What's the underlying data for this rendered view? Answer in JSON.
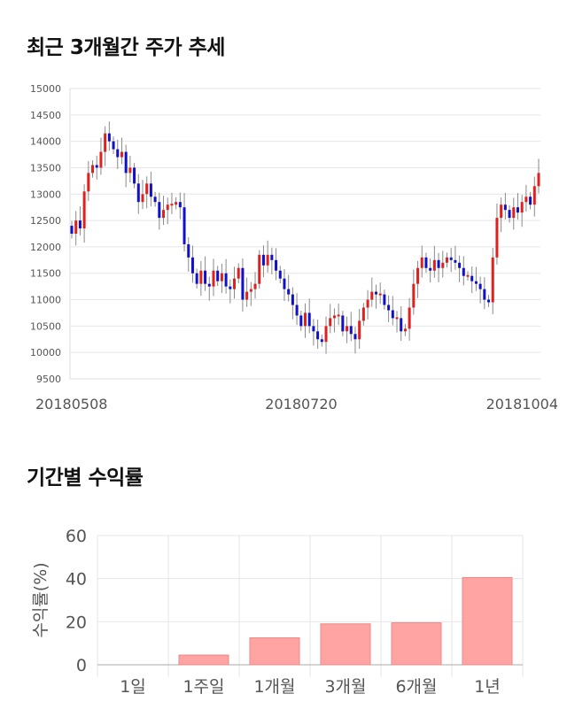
{
  "sections": {
    "price_title": "최근 3개월간 주가 추세",
    "return_title": "기간별 수익률"
  },
  "colors": {
    "up": "#e0201c",
    "down": "#1010c8",
    "bar_fill": "#ffa3a3",
    "bar_stroke": "#e88888",
    "grid": "#e6e6e6"
  },
  "chart_data": [
    {
      "type": "candlestick",
      "title": "최근 3개월간 주가 추세",
      "ylim": [
        9500,
        15000
      ],
      "yticks": [
        9500,
        10000,
        10500,
        11000,
        11500,
        12000,
        12500,
        13000,
        13500,
        14000,
        14500,
        15000
      ],
      "xtick_labels": [
        "20180508",
        "20180720",
        "20181004"
      ],
      "grid": true,
      "close": [
        12250,
        12500,
        12350,
        13050,
        13400,
        13550,
        13500,
        13800,
        14150,
        14000,
        13850,
        13700,
        13800,
        13400,
        13500,
        13200,
        12850,
        13000,
        13200,
        12950,
        12850,
        12550,
        12700,
        12800,
        12800,
        12850,
        12750,
        12050,
        11800,
        11500,
        11300,
        11550,
        11300,
        11250,
        11550,
        11350,
        11500,
        11250,
        11200,
        11400,
        11600,
        11000,
        11150,
        11200,
        11300,
        11850,
        11650,
        11850,
        11750,
        11550,
        11400,
        11200,
        11100,
        10900,
        10700,
        10500,
        10750,
        10500,
        10400,
        10250,
        10200,
        10500,
        10650,
        10700,
        10700,
        10400,
        10500,
        10350,
        10250,
        10600,
        10850,
        11000,
        11150,
        11100,
        11100,
        10900,
        10800,
        10650,
        10650,
        10400,
        10450,
        10850,
        11300,
        11600,
        11800,
        11600,
        11550,
        11750,
        11600,
        11700,
        11800,
        11750,
        11700,
        11600,
        11450,
        11450,
        11350,
        11300,
        11200,
        11000,
        10950,
        11800,
        12550,
        12800,
        12700,
        12550,
        12750,
        12650,
        12850,
        12950,
        12800,
        13150,
        13400
      ]
    },
    {
      "type": "bar",
      "title": "기간별 수익률",
      "categories": [
        "1일",
        "1주일",
        "1개월",
        "3개월",
        "6개월",
        "1년"
      ],
      "values": [
        0,
        4.5,
        12.5,
        19,
        19.5,
        40.5
      ],
      "ylabel": "수익률(%)",
      "ylim": [
        0,
        60
      ],
      "yticks": [
        0,
        20,
        40,
        60
      ],
      "grid": true
    }
  ]
}
